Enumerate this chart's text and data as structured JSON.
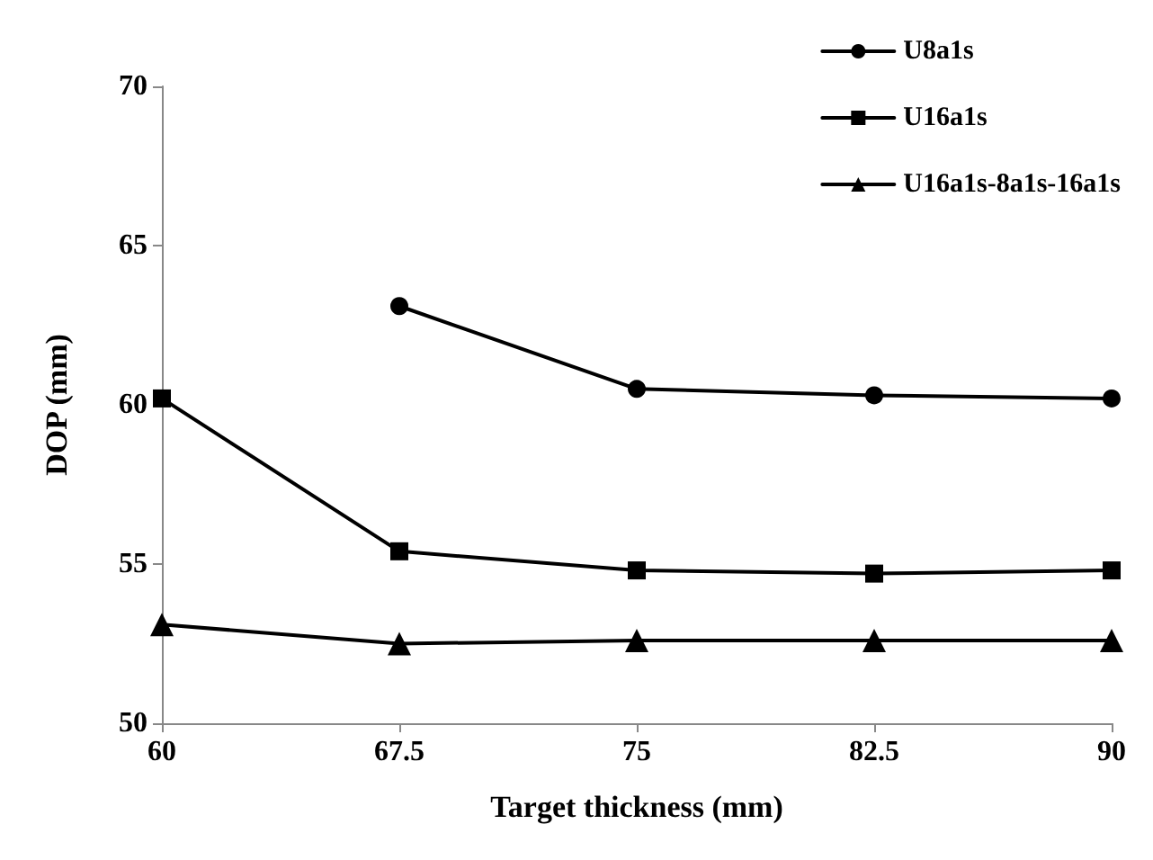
{
  "chart_data": {
    "type": "line",
    "xlabel": "Target thickness (mm)",
    "ylabel": "DOP (mm)",
    "x": [
      60,
      67.5,
      75,
      82.5,
      90
    ],
    "series": [
      {
        "name": "U8a1s",
        "color": "#000000",
        "marker": "circle",
        "values": [
          null,
          63.1,
          60.5,
          60.3,
          60.2
        ]
      },
      {
        "name": "U16a1s",
        "color": "#000000",
        "marker": "square",
        "values": [
          60.2,
          55.4,
          54.8,
          54.7,
          54.8
        ]
      },
      {
        "name": "U16a1s-8a1s-16a1s",
        "color": "#000000",
        "marker": "triangle",
        "values": [
          53.1,
          52.5,
          52.6,
          52.6,
          52.6
        ]
      }
    ],
    "xlim": [
      60,
      90
    ],
    "xticks": [
      60,
      67.5,
      75,
      82.5,
      90
    ],
    "ylim": [
      50,
      70
    ],
    "yticks": [
      50,
      55,
      60,
      65,
      70
    ],
    "grid": false,
    "legend": "top right",
    "line_style": "solid"
  }
}
